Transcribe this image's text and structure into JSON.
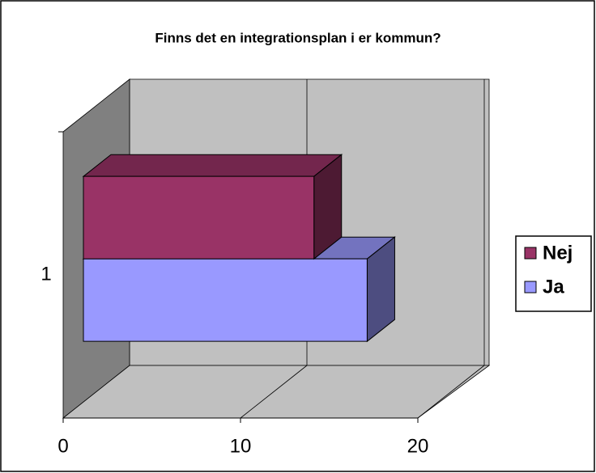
{
  "chart_data": {
    "type": "bar3d_horizontal",
    "title": "Finns det en integrationsplan i er kommun?",
    "categories": [
      "1"
    ],
    "series": [
      {
        "name": "Nej",
        "color": "#993366",
        "values": [
          13
        ]
      },
      {
        "name": "Ja",
        "color": "#9999ff",
        "values": [
          16
        ]
      }
    ],
    "xlim": [
      0,
      20
    ],
    "xticks": [
      0,
      10,
      20
    ],
    "grid": true,
    "legend": "right"
  }
}
